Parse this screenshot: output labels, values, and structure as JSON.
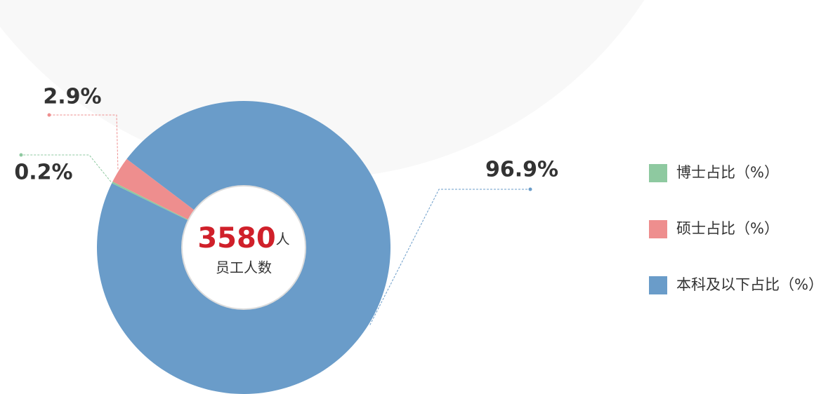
{
  "chart_data": {
    "type": "donut",
    "categories": [
      "博士占比（%）",
      "硕士占比（%）",
      "本科及以下占比（%）"
    ],
    "values": [
      0.2,
      2.9,
      96.9
    ],
    "value_labels": [
      "0.2%",
      "2.9%",
      "96.9%"
    ],
    "colors": [
      "#8ec9a0",
      "#ee8e8e",
      "#6a9cc9"
    ],
    "center_value": 3580,
    "center_unit": "人",
    "center_label": "员工人数",
    "legend": "right"
  }
}
